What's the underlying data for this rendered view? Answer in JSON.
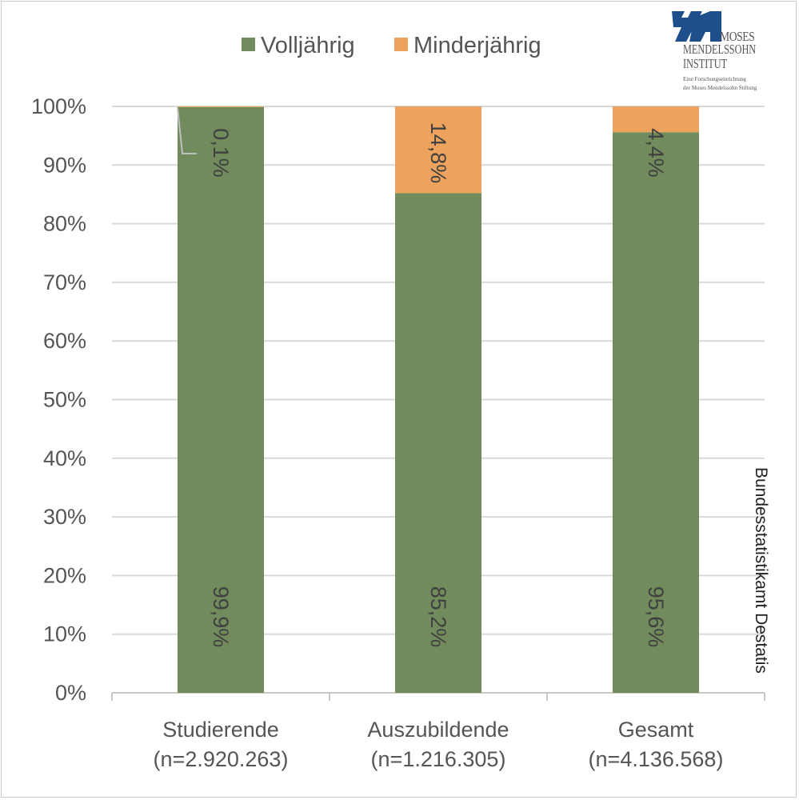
{
  "chart_data": {
    "type": "bar",
    "stacked": true,
    "percent": true,
    "title": "",
    "categories": [
      "Studierende\n(n=2.920.263)",
      "Auszubildende\n(n=1.216.305)",
      "Gesamt\n(n=4.136.568)"
    ],
    "category_lines": [
      [
        "Studierende",
        "(n=2.920.263)"
      ],
      [
        "Auszubildende",
        "(n=1.216.305)"
      ],
      [
        "Gesamt",
        "(n=4.136.568)"
      ]
    ],
    "series": [
      {
        "name": "Volljährig",
        "color": "#718b5c",
        "values": [
          99.9,
          85.2,
          95.6
        ],
        "labels": [
          "99,9%",
          "85,2%",
          "95,6%"
        ]
      },
      {
        "name": "Minderjährig",
        "color": "#eda35d",
        "values": [
          0.1,
          14.8,
          4.4
        ],
        "labels": [
          "0,1%",
          "14,8%",
          "4,4%"
        ]
      }
    ],
    "yticks": [
      "0%",
      "10%",
      "20%",
      "30%",
      "40%",
      "50%",
      "60%",
      "70%",
      "80%",
      "90%",
      "100%"
    ],
    "ylim": [
      0,
      100
    ],
    "xlabel": "",
    "ylabel": "",
    "grid": true,
    "legend": "top-center"
  },
  "source": "Bundesstatistikamt Destatis",
  "logo": {
    "line1": "MOSES",
    "line2": "MENDELSSOHN",
    "line3": "INSTITUT",
    "line4": "Eine Forschungseinrichtung",
    "line5": "der Moses Mendelssohn Stiftung"
  }
}
